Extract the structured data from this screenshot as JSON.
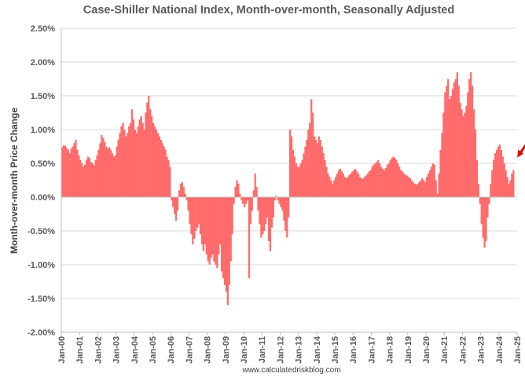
{
  "chart_data": {
    "type": "bar",
    "title": "Case-Shiller National Index, Month-over-month, Seasonally Adjusted",
    "ylabel": "Month-over-month Price Change",
    "xlabel": "",
    "source": "www.calculatedriskblog.com",
    "ylim": [
      -2.0,
      2.5
    ],
    "y_ticks": [
      "2.50%",
      "2.00%",
      "1.50%",
      "1.00%",
      "0.50%",
      "0.00%",
      "-0.50%",
      "-1.00%",
      "-1.50%",
      "-2.00%"
    ],
    "x_ticks": [
      "Jan-00",
      "Jan-01",
      "Jan-02",
      "Jan-03",
      "Jan-04",
      "Jan-05",
      "Jan-06",
      "Jan-07",
      "Jan-08",
      "Jan-09",
      "Jan-10",
      "Jan-11",
      "Jan-12",
      "Jan-13",
      "Jan-14",
      "Jan-15",
      "Jan-16",
      "Jan-17",
      "Jan-18",
      "Jan-19",
      "Jan-20",
      "Jan-21",
      "Jan-22",
      "Jan-23",
      "Jan-24",
      "Jan-25"
    ],
    "x_range": [
      "Jan-00",
      "Jan-25"
    ],
    "bar_color": "#ff6b6b",
    "arrow_color": "#e00000",
    "annotation": "red arrow pointing to latest value",
    "series": [
      {
        "name": "Month-over-month change (%)",
        "start": "Jan-00",
        "values": [
          0.74,
          0.77,
          0.76,
          0.73,
          0.7,
          0.65,
          0.72,
          0.75,
          0.8,
          0.85,
          0.7,
          0.62,
          0.55,
          0.5,
          0.45,
          0.48,
          0.55,
          0.6,
          0.58,
          0.52,
          0.5,
          0.47,
          0.55,
          0.62,
          0.7,
          0.8,
          0.92,
          0.88,
          0.82,
          0.75,
          0.72,
          0.74,
          0.7,
          0.65,
          0.6,
          0.62,
          0.75,
          0.85,
          0.95,
          1.05,
          1.1,
          1.0,
          0.9,
          0.95,
          1.05,
          1.1,
          1.3,
          1.15,
          1.0,
          0.95,
          1.05,
          1.15,
          1.2,
          1.1,
          1.0,
          1.25,
          1.4,
          1.5,
          1.3,
          1.2,
          1.1,
          1.05,
          1.0,
          0.95,
          0.9,
          0.85,
          0.8,
          0.75,
          0.7,
          0.6,
          0.55,
          0.45,
          -0.05,
          -0.15,
          -0.25,
          -0.35,
          -0.2,
          0.1,
          0.2,
          0.22,
          0.15,
          0.05,
          -0.05,
          -0.2,
          -0.4,
          -0.55,
          -0.7,
          -0.62,
          -0.5,
          -0.45,
          -0.4,
          -0.55,
          -0.7,
          -0.8,
          -0.7,
          -0.85,
          -0.95,
          -1.0,
          -0.9,
          -0.85,
          -0.95,
          -1.0,
          -1.05,
          -0.85,
          -0.7,
          -1.1,
          -1.2,
          -1.3,
          -1.4,
          -1.6,
          -1.3,
          -0.95,
          -0.55,
          -0.1,
          0.15,
          0.25,
          0.2,
          0.05,
          -0.05,
          -0.1,
          -0.15,
          -0.1,
          -0.05,
          -1.2,
          -0.4,
          -0.2,
          0.1,
          0.35,
          0.15,
          -0.2,
          -0.4,
          -0.6,
          -0.55,
          -0.5,
          -0.4,
          -0.3,
          -0.65,
          -0.8,
          -0.45,
          -0.3,
          -0.05,
          0.02,
          -0.05,
          -0.1,
          -0.15,
          -0.2,
          -0.35,
          -0.5,
          -0.6,
          -0.3,
          1.0,
          0.9,
          0.7,
          0.6,
          0.5,
          0.45,
          0.45,
          0.5,
          0.55,
          0.65,
          0.75,
          0.85,
          1.0,
          1.1,
          1.45,
          1.25,
          0.9,
          0.85,
          0.8,
          0.9,
          0.85,
          0.75,
          0.65,
          0.55,
          0.45,
          0.35,
          0.3,
          0.25,
          0.2,
          0.25,
          0.3,
          0.35,
          0.4,
          0.42,
          0.38,
          0.35,
          0.3,
          0.28,
          0.3,
          0.33,
          0.35,
          0.38,
          0.4,
          0.42,
          0.38,
          0.35,
          0.3,
          0.28,
          0.27,
          0.3,
          0.32,
          0.35,
          0.38,
          0.4,
          0.45,
          0.48,
          0.5,
          0.52,
          0.55,
          0.5,
          0.45,
          0.42,
          0.4,
          0.43,
          0.48,
          0.5,
          0.55,
          0.58,
          0.6,
          0.58,
          0.55,
          0.5,
          0.45,
          0.4,
          0.38,
          0.35,
          0.33,
          0.32,
          0.3,
          0.28,
          0.25,
          0.22,
          0.2,
          0.18,
          0.2,
          0.22,
          0.25,
          0.28,
          0.25,
          0.22,
          0.3,
          0.35,
          0.4,
          0.45,
          0.5,
          0.48,
          0.25,
          0.05,
          0.35,
          0.7,
          0.95,
          1.25,
          1.55,
          1.65,
          1.75,
          1.45,
          1.5,
          1.6,
          1.7,
          1.75,
          1.85,
          1.65,
          1.4,
          1.3,
          1.2,
          1.25,
          1.35,
          1.55,
          1.75,
          1.85,
          1.65,
          1.3,
          1.0,
          0.55,
          0.2,
          -0.1,
          -0.4,
          -0.6,
          -0.75,
          -0.65,
          -0.3,
          -0.1,
          0.2,
          0.4,
          0.55,
          0.65,
          0.7,
          0.75,
          0.78,
          0.7,
          0.6,
          0.5,
          0.4,
          0.3,
          0.2,
          0.25,
          0.35,
          0.4
        ]
      }
    ]
  }
}
